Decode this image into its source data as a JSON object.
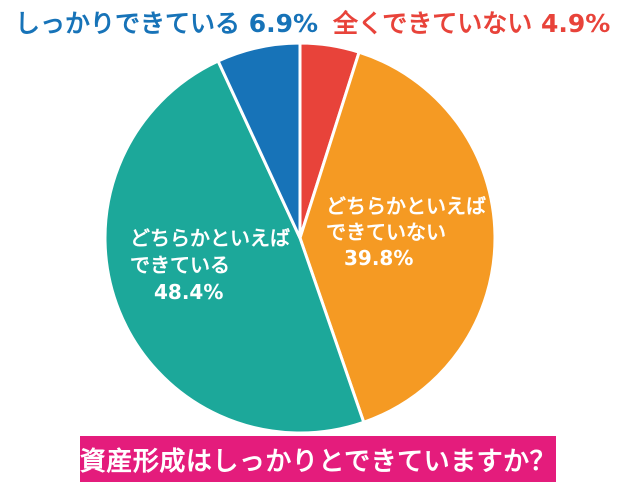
{
  "chart_data": {
    "type": "pie",
    "title": "資産形成はしっかりとできていますか？",
    "slices": [
      {
        "label": "全くできていない",
        "label_lines": [
          "全くできていない 4.9%"
        ],
        "value": 4.9,
        "value_label": "4.9%",
        "color": "#E8433A",
        "label_color": "#E8433A",
        "label_position": "outside-top-right"
      },
      {
        "label": "どちらかといえばできていない",
        "label_lines": [
          "どちらかといえば",
          "できていない",
          "39.8%"
        ],
        "value": 39.8,
        "value_label": "39.8%",
        "color": "#F59A23",
        "label_color": "#FFFFFF",
        "label_position": "inside"
      },
      {
        "label": "どちらかといえばできている",
        "label_lines": [
          "どちらかといえば",
          "できている",
          "48.4%"
        ],
        "value": 48.4,
        "value_label": "48.4%",
        "color": "#1CA89A",
        "label_color": "#FFFFFF",
        "label_position": "inside"
      },
      {
        "label": "しっかりできている",
        "label_lines": [
          "しっかりできている 6.9%"
        ],
        "value": 6.9,
        "value_label": "6.9%",
        "color": "#1773B8",
        "label_color": "#1773B8",
        "label_position": "outside-top-left"
      }
    ],
    "start": "12 o'clock",
    "direction": "clockwise"
  },
  "title_style": {
    "background": "#E41C7C",
    "text_color": "#FFFFFF"
  }
}
